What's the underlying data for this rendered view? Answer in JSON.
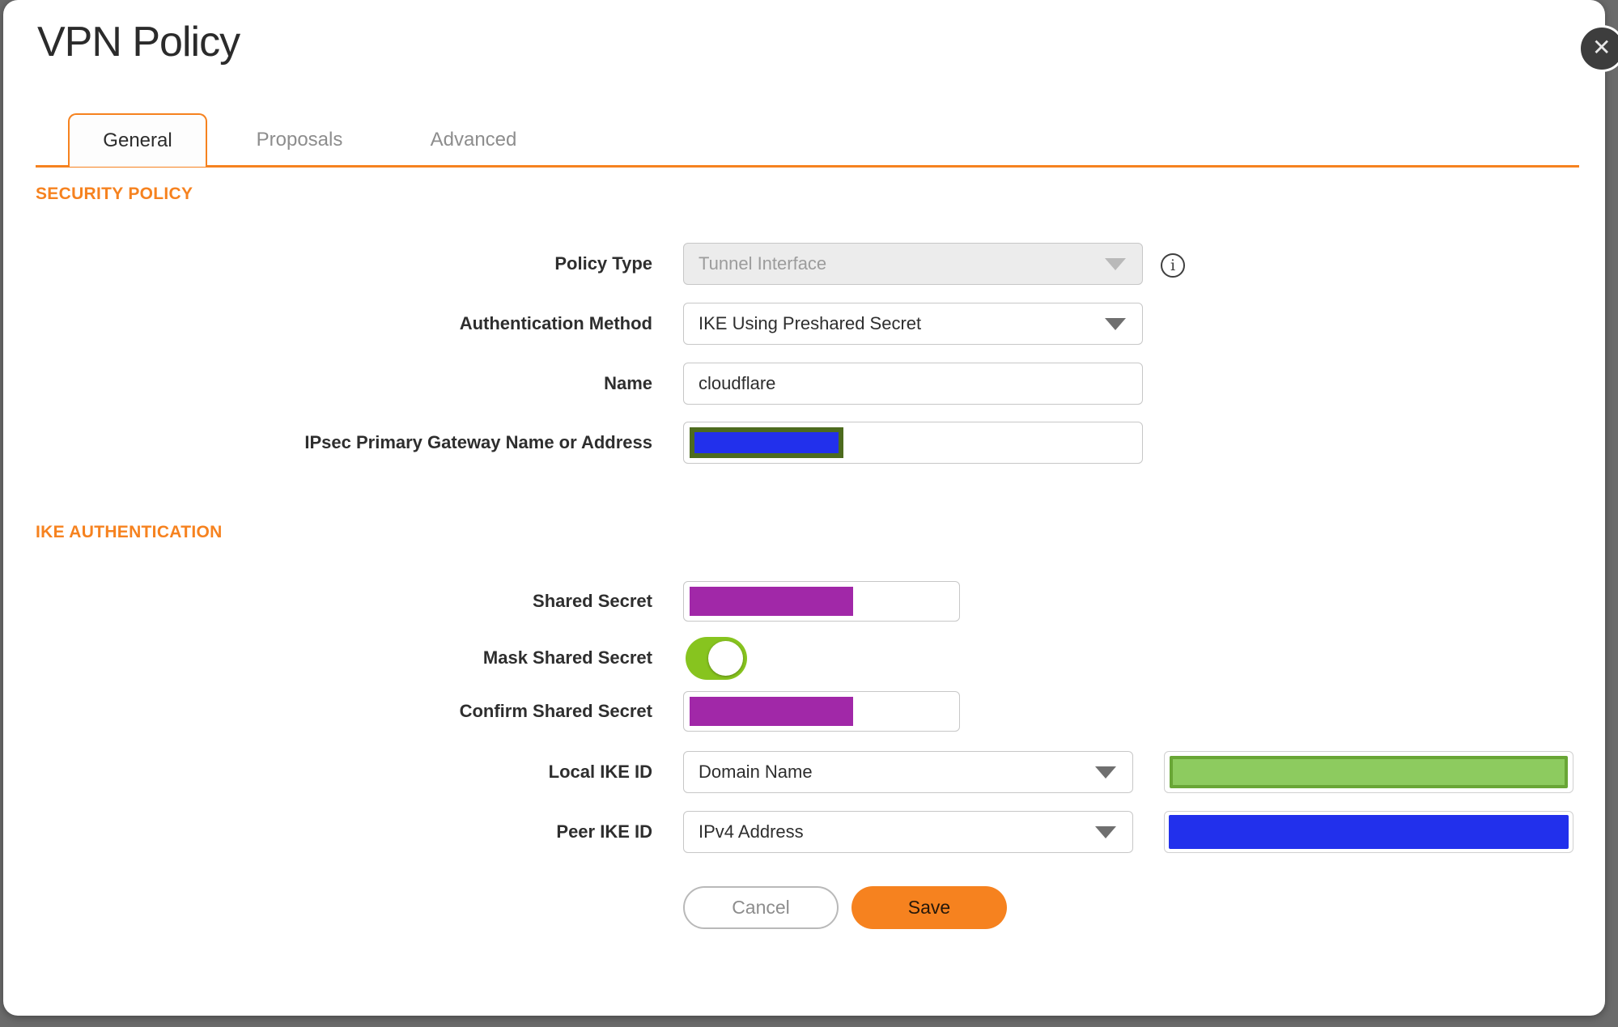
{
  "dialog": {
    "title": "VPN Policy",
    "close_glyph": "✕"
  },
  "tabs": [
    {
      "label": "General",
      "active": true
    },
    {
      "label": "Proposals",
      "active": false
    },
    {
      "label": "Advanced",
      "active": false
    }
  ],
  "security_policy": {
    "heading": "SECURITY POLICY",
    "policy_type": {
      "label": "Policy Type",
      "value": "Tunnel Interface",
      "disabled": true,
      "info_glyph": "i"
    },
    "authentication_method": {
      "label": "Authentication Method",
      "value": "IKE Using Preshared Secret"
    },
    "name": {
      "label": "Name",
      "value": "cloudflare"
    },
    "gateway": {
      "label": "IPsec Primary Gateway Name or Address",
      "value": "",
      "redacted": true
    }
  },
  "ike_authentication": {
    "heading": "IKE AUTHENTICATION",
    "shared_secret": {
      "label": "Shared Secret",
      "value": "",
      "redacted": true
    },
    "mask_shared_secret": {
      "label": "Mask Shared Secret",
      "state": "on"
    },
    "confirm_shared_secret": {
      "label": "Confirm Shared Secret",
      "value": "",
      "redacted": true
    },
    "local_ike_id": {
      "label": "Local IKE ID",
      "type": "Domain Name",
      "value": "",
      "redacted": true
    },
    "peer_ike_id": {
      "label": "Peer IKE ID",
      "type": "IPv4 Address",
      "value": "",
      "redacted": true
    }
  },
  "buttons": {
    "cancel": "Cancel",
    "save": "Save"
  },
  "colors": {
    "accent_orange": "#F6821F",
    "toggle_green": "#87C41F",
    "redaction_purple": "#A128A8",
    "redaction_blue": "#2230EC",
    "redaction_green_fill": "#8DCB5F",
    "redaction_green_border": "#69A636",
    "redaction_olive_border": "#4D6B1E",
    "backdrop_gray": "#6B6B6B"
  }
}
